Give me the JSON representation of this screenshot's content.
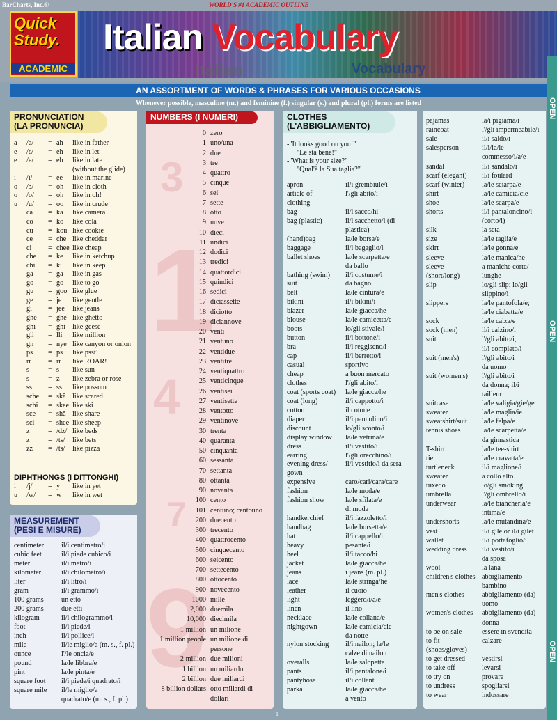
{
  "header": {
    "publisher": "BarCharts, Inc.®",
    "tagline": "WORLD'S #1 ACADEMIC OUTLINE",
    "logo_quick": "Quick",
    "logo_study": "Study.",
    "logo_academic": "ACADEMIC",
    "title_word1": "Italian",
    "title_word2": "Vocabulary",
    "ghost_left": "Italian",
    "ghost_right": "Vocabulary"
  },
  "subtitle": "AN ASSORTMENT OF WORDS & PHRASES FOR VARIOUS OCCASIONS",
  "note": "Whenever possible, masculine (m.) and feminine (f.) singular (s.) and plural (pl.) forms are listed",
  "side_tab": [
    "OPEN",
    "OPEN",
    "OPEN"
  ],
  "pronunciation": {
    "title1": "PRONUNCIATION",
    "title2": "(LA PRONUNCIA)",
    "rows": [
      [
        "a",
        "/a/",
        "=",
        "ah",
        "like in father"
      ],
      [
        "e",
        "/ɛ/",
        "=",
        "eh",
        "like in let"
      ],
      [
        "e",
        "/e/",
        "=",
        "eh",
        "like in late"
      ],
      [
        "",
        "",
        "",
        "",
        "(without the glide)"
      ],
      [
        "i",
        "/i/",
        "=",
        "ee",
        "like in marine"
      ],
      [
        "o",
        "/ɔ/",
        "=",
        "oh",
        "like in cloth"
      ],
      [
        "o",
        "/o/",
        "=",
        "oh",
        "like in oh!"
      ],
      [
        "u",
        "/u/",
        "=",
        "oo",
        "like in crude"
      ],
      [
        "",
        "ca",
        "=",
        "ka",
        "like camera"
      ],
      [
        "",
        "co",
        "=",
        "ko",
        "like cola"
      ],
      [
        "",
        "cu",
        "=",
        "kou",
        "like cookie"
      ],
      [
        "",
        "ce",
        "=",
        "che",
        "like cheddar"
      ],
      [
        "",
        "ci",
        "=",
        "chee",
        "like cheap"
      ],
      [
        "",
        "che",
        "=",
        "ke",
        "like in ketchup"
      ],
      [
        "",
        "chi",
        "=",
        "ki",
        "like in keep"
      ],
      [
        "",
        "ga",
        "=",
        "ga",
        "like in gas"
      ],
      [
        "",
        "go",
        "=",
        "go",
        "like to go"
      ],
      [
        "",
        "gu",
        "=",
        "goo",
        "like glue"
      ],
      [
        "",
        "ge",
        "=",
        "je",
        "like gentle"
      ],
      [
        "",
        "gi",
        "=",
        "jee",
        "like jeans"
      ],
      [
        "",
        "ghe",
        "=",
        "ghe",
        "like ghetto"
      ],
      [
        "",
        "ghi",
        "=",
        "ghi",
        "like geese"
      ],
      [
        "",
        "gli",
        "=",
        "lli",
        "like million"
      ],
      [
        "",
        "gn",
        "=",
        "nye",
        "like canyon or onion"
      ],
      [
        "",
        "ps",
        "=",
        "ps",
        "like psst!"
      ],
      [
        "",
        "rr",
        "=",
        "rr",
        "like ROAR!"
      ],
      [
        "",
        "s",
        "=",
        "s",
        "like sun"
      ],
      [
        "",
        "s",
        "=",
        "z",
        "like zebra or rose"
      ],
      [
        "",
        "ss",
        "=",
        "ss",
        "like possum"
      ],
      [
        "",
        "sche",
        "=",
        "skâ",
        "like scared"
      ],
      [
        "",
        "schi",
        "=",
        "skee",
        "like ski"
      ],
      [
        "",
        "sce",
        "=",
        "shâ",
        "like share"
      ],
      [
        "",
        "sci",
        "=",
        "shee",
        "like sheep"
      ],
      [
        "",
        "z",
        "=",
        "/dz/",
        "like beds"
      ],
      [
        "",
        "z",
        "=",
        "/ts/",
        "like bets"
      ],
      [
        "",
        "zz",
        "=",
        "/ts/",
        "like pizza"
      ]
    ],
    "diph_title": "DIPHTHONGS (I DITTONGHI)",
    "diph": [
      [
        "i",
        "/j/",
        "=",
        "y",
        "like in yet"
      ],
      [
        "u",
        "/w/",
        "=",
        "w",
        "like in wet"
      ]
    ]
  },
  "measurement": {
    "title1": "MEASUREMENT",
    "title2": "(PESI E MISURE)",
    "rows": [
      [
        "centimeter",
        "il/i centimetro/i"
      ],
      [
        "cubic feet",
        "il/i piede cubico/i"
      ],
      [
        "meter",
        "il/i metro/i"
      ],
      [
        "kilometer",
        "il/i chilometro/i"
      ],
      [
        "liter",
        "il/i litro/i"
      ],
      [
        "gram",
        "il/i grammo/i"
      ],
      [
        "100 grams",
        "un etto"
      ],
      [
        "200 grams",
        "due etti"
      ],
      [
        "kilogram",
        "il/i chilogrammo/i"
      ],
      [
        "  foot",
        "il/i piede/i"
      ],
      [
        "  inch",
        "il/i pollice/i"
      ],
      [
        "  mile",
        "il/le miglio/a (m. s., f. pl.)"
      ],
      [
        "  ounce",
        "l'/le oncia/e"
      ],
      [
        "pound",
        "la/le libbra/e"
      ],
      [
        "pint",
        "la/le pinta/e"
      ],
      [
        "square foot",
        "il/i piede/i quadrato/i"
      ],
      [
        "square mile",
        "il/le miglio/a"
      ],
      [
        "",
        "quadrato/e (m. s., f. pl.)"
      ]
    ]
  },
  "numbers": {
    "title": "NUMBERS (I NUMERI)",
    "rows": [
      [
        "0",
        "zero"
      ],
      [
        "1",
        "uno/una"
      ],
      [
        "2",
        "due"
      ],
      [
        "3",
        "tre"
      ],
      [
        "4",
        "quattro"
      ],
      [
        "5",
        "cinque"
      ],
      [
        "6",
        "sei"
      ],
      [
        "7",
        "sette"
      ],
      [
        "8",
        "otto"
      ],
      [
        "9",
        "nove"
      ],
      [
        "10",
        "dieci"
      ],
      [
        "11",
        "undici"
      ],
      [
        "12",
        "dodici"
      ],
      [
        "13",
        "tredici"
      ],
      [
        "14",
        "quattordici"
      ],
      [
        "15",
        "quindici"
      ],
      [
        "16",
        "sedici"
      ],
      [
        "17",
        "diciassette"
      ],
      [
        "18",
        "diciotto"
      ],
      [
        "19",
        "diciannove"
      ],
      [
        "20",
        "venti"
      ],
      [
        "21",
        "ventuno"
      ],
      [
        "22",
        "ventidue"
      ],
      [
        "23",
        "ventitré"
      ],
      [
        "24",
        "ventiquattro"
      ],
      [
        "25",
        "venticinque"
      ],
      [
        "26",
        "ventisei"
      ],
      [
        "27",
        "ventisette"
      ],
      [
        "28",
        "ventotto"
      ],
      [
        "29",
        "ventinove"
      ],
      [
        "30",
        "trenta"
      ],
      [
        "40",
        "quaranta"
      ],
      [
        "50",
        "cinquanta"
      ],
      [
        "60",
        "sessanta"
      ],
      [
        "70",
        "settanta"
      ],
      [
        "80",
        "ottanta"
      ],
      [
        "90",
        "novanta"
      ],
      [
        "100",
        "cento"
      ],
      [
        "101",
        "centuno; centouno"
      ],
      [
        "200",
        "duecento"
      ],
      [
        "300",
        "trecento"
      ],
      [
        "400",
        "quattrocento"
      ],
      [
        "500",
        "cinquecento"
      ],
      [
        "600",
        "seicento"
      ],
      [
        "700",
        "settecento"
      ],
      [
        "800",
        "ottocento"
      ],
      [
        "900",
        "novecento"
      ],
      [
        "1000",
        "mille"
      ],
      [
        "2,000",
        "duemila"
      ],
      [
        "10,000",
        "diecimila"
      ],
      [
        "1 million",
        "un milione"
      ],
      [
        "1 million people",
        "un milione di"
      ],
      [
        "",
        "persone"
      ],
      [
        "2 million",
        "due milioni"
      ],
      [
        "1 billion",
        "un miliardo"
      ],
      [
        "2 billion",
        "due miliardi"
      ],
      [
        "8 billion dollars",
        "otto miliardi di"
      ],
      [
        "",
        "dollari"
      ]
    ]
  },
  "clothes": {
    "title1": "CLOTHES",
    "title2": "(L'ABBIGLIAMENTO)",
    "phrases": [
      "-\"It looks good on you!\"",
      "\"Le sta bene!\"",
      "-\"What is your size?\"",
      "\"Qual'è la Sua taglia?\""
    ],
    "rows": [
      [
        "apron",
        "il/i grembiule/i"
      ],
      [
        "article of",
        "l'/gli abito/i"
      ],
      [
        "clothing",
        ""
      ],
      [
        "bag",
        "il/i sacco/hi"
      ],
      [
        "bag (plastic)",
        "il/i sacchetto/i (di"
      ],
      [
        "",
        "plastica)"
      ],
      [
        "(hand)bag",
        "la/le borsa/e"
      ],
      [
        "baggage",
        "il/i bagaglio/i"
      ],
      [
        "ballet shoes",
        "la/le scarpetta/e"
      ],
      [
        "",
        "da ballo"
      ],
      [
        "bathing (swim)",
        "il/i costume/i"
      ],
      [
        "  suit",
        "da bagno"
      ],
      [
        "belt",
        "la/le cintura/e"
      ],
      [
        "bikini",
        "il/i bikini/i"
      ],
      [
        "blazer",
        "la/le giacca/he"
      ],
      [
        "blouse",
        "la/le camicetta/e"
      ],
      [
        "boots",
        "lo/gli stivale/i"
      ],
      [
        "button",
        "il/i bottone/i"
      ],
      [
        "bra",
        "il/i reggiseno/i"
      ],
      [
        "cap",
        "il/i berretto/i"
      ],
      [
        "casual",
        "sportivo"
      ],
      [
        "cheap",
        "a buon mercato"
      ],
      [
        "clothes",
        "l'/gli abito/i"
      ],
      [
        "coat (sports coat)",
        "la/le giacca/he"
      ],
      [
        "coat (long)",
        "il/i cappotto/i"
      ],
      [
        "cotton",
        "il cotone"
      ],
      [
        "diaper",
        "il/i pannolino/i"
      ],
      [
        "discount",
        "lo/gli sconto/i"
      ],
      [
        "display window",
        "la/le vetrina/e"
      ],
      [
        "dress",
        "il/i vestito/i"
      ],
      [
        "earring",
        "l'/gli orecchino/i"
      ],
      [
        "evening dress/",
        "il/i vestitio/i da sera"
      ],
      [
        "  gown",
        ""
      ],
      [
        "expensive",
        "caro/cari/cara/care"
      ],
      [
        "fashion",
        "la/le moda/e"
      ],
      [
        "fashion show",
        "la/le sfilata/e"
      ],
      [
        "",
        "di moda"
      ],
      [
        "handkerchief",
        "il/i fazzoletto/i"
      ],
      [
        "handbag",
        "la/le borsetta/e"
      ],
      [
        "hat",
        "il/i cappello/i"
      ],
      [
        "heavy",
        "pesante/i"
      ],
      [
        "heel",
        "il/i tacco/hi"
      ],
      [
        "jacket",
        "la/le giacca/he"
      ],
      [
        "jeans",
        "i jeans (m. pl.)"
      ],
      [
        "lace",
        "la/le stringa/he"
      ],
      [
        "leather",
        "il cuoio"
      ],
      [
        "light",
        "leggero/i/a/e"
      ],
      [
        "linen",
        "il lino"
      ],
      [
        "necklace",
        "la/le collana/e"
      ],
      [
        "nightgown",
        "la/le camicia/cie"
      ],
      [
        "",
        "da notte"
      ],
      [
        "nylon stocking",
        "il/i nailon; la/le"
      ],
      [
        "",
        "calze di nailon"
      ],
      [
        "overalls",
        "la/le salopette"
      ],
      [
        "pants",
        "il/i pantalone/i"
      ],
      [
        "pantyhose",
        "il/i collant"
      ],
      [
        "parka",
        "la/le giacca/he"
      ],
      [
        "",
        "a vento"
      ]
    ]
  },
  "clothes2": {
    "rows": [
      [
        "pajamas",
        "la/i pigiama/i"
      ],
      [
        "raincoat",
        "l'/gli impermeabile/i"
      ],
      [
        "sale",
        "il/i saldo/i"
      ],
      [
        "salesperson",
        "il/i/la/le"
      ],
      [
        "",
        "commesso/i/a/e"
      ],
      [
        "sandal",
        "il/i sandalo/i"
      ],
      [
        "scarf (elegant)",
        "il/i foulard"
      ],
      [
        "scarf (winter)",
        "la/le sciarpa/e"
      ],
      [
        "shirt",
        "la/le camicia/cie"
      ],
      [
        "shoe",
        "la/le scarpa/e"
      ],
      [
        "shorts",
        "il/i pantaloncino/i"
      ],
      [
        "",
        "(corto/i)"
      ],
      [
        "silk",
        "la seta"
      ],
      [
        "size",
        "la/le taglia/e"
      ],
      [
        "skirt",
        "la/le gonna/e"
      ],
      [
        "sleeve",
        "la/le manica/he"
      ],
      [
        "sleeve",
        "a maniche corte/"
      ],
      [
        "  (short/long)",
        "lunghe"
      ],
      [
        "slip",
        "lo/gli slip; lo/gli"
      ],
      [
        "",
        "slippino/i"
      ],
      [
        "slippers",
        "la/le pantofola/e;"
      ],
      [
        "",
        "la/le ciabatta/e"
      ],
      [
        "sock",
        "la/le calza/e"
      ],
      [
        "sock (men)",
        "il/i calzino/i"
      ],
      [
        "suit",
        "l'/gli abito/i,"
      ],
      [
        "",
        "il/i completo/i"
      ],
      [
        "suit (men's)",
        "l'/gli abito/i"
      ],
      [
        "",
        "da uomo"
      ],
      [
        "suit (women's)",
        "l'/gli abito/i"
      ],
      [
        "",
        "da donna; il/i"
      ],
      [
        "",
        "tailleur"
      ],
      [
        "suitcase",
        "la/le valigia/gie/ge"
      ],
      [
        "sweater",
        "la/le maglia/ie"
      ],
      [
        "sweatshirt/suit",
        "la/le felpa/e"
      ],
      [
        "tennis shoes",
        "la/le scarpetta/e"
      ],
      [
        "",
        "da ginnastica"
      ],
      [
        "T-shirt",
        "la/le tee-shirt"
      ],
      [
        "tie",
        "la/le cravatta/e"
      ],
      [
        "turtleneck",
        "il/i maglione/i"
      ],
      [
        "  sweater",
        "a collo alto"
      ],
      [
        "tuxedo",
        "lo/gli smoking"
      ],
      [
        "umbrella",
        "l'/gli ombrello/i"
      ],
      [
        "underwear",
        "la/le biancheria/e"
      ],
      [
        "",
        "intima/e"
      ],
      [
        "undershorts",
        "la/le mutandina/e"
      ],
      [
        "vest",
        "il/i gilè or il/i gilet"
      ],
      [
        "wallet",
        "il/i portafoglio/i"
      ],
      [
        "wedding dress",
        "il/i vestito/i"
      ],
      [
        "",
        "da sposa"
      ],
      [
        "wool",
        "la lana"
      ],
      [
        "children's clothes",
        "abbigliamento"
      ],
      [
        "",
        "bambino"
      ],
      [
        "men's clothes",
        "abbigliamento (da)"
      ],
      [
        "",
        "uomo"
      ],
      [
        "women's clothes",
        "abbigliamento (da)"
      ],
      [
        "",
        "donna"
      ],
      [
        "to be on sale",
        "essere in svendita"
      ],
      [
        "to fit",
        "calzare"
      ],
      [
        "  (shoes/gloves)",
        ""
      ],
      [
        "to get dressed",
        "vestirsi"
      ],
      [
        "to take off",
        "levarsi"
      ],
      [
        "to try on",
        "provare"
      ],
      [
        "to undress",
        "spogliarsi"
      ],
      [
        "to wear",
        "indossare"
      ]
    ]
  },
  "page_number": "1",
  "colors": {
    "pron_head": "#f2e6a3",
    "meas_head": "#c9cde8",
    "num_head": "#c0151d",
    "clothes_head": "#cfe9e6"
  }
}
